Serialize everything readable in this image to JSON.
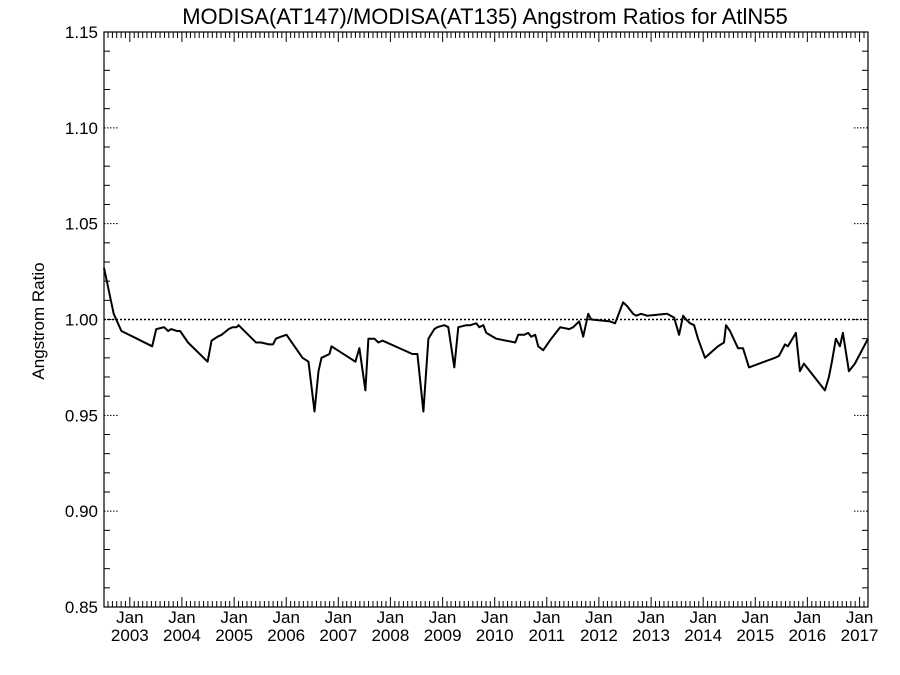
{
  "chart_data": {
    "type": "line",
    "title": "MODISA(AT147)/MODISA(AT135)  Angstrom Ratios for AtlN55",
    "xlabel": "",
    "ylabel": "Angstrom Ratio",
    "ylim": [
      0.85,
      1.15
    ],
    "xlim": [
      "2002-07-04",
      "2017-03-01"
    ],
    "y_ticks": [
      "0.85",
      "0.90",
      "0.95",
      "1.00",
      "1.05",
      "1.10",
      "1.15"
    ],
    "x_ticks": [
      {
        "month": "Jan",
        "year": "2003",
        "date": "2003-01-01"
      },
      {
        "month": "Jan",
        "year": "2004",
        "date": "2004-01-01"
      },
      {
        "month": "Jan",
        "year": "2005",
        "date": "2005-01-01"
      },
      {
        "month": "Jan",
        "year": "2006",
        "date": "2006-01-01"
      },
      {
        "month": "Jan",
        "year": "2007",
        "date": "2007-01-01"
      },
      {
        "month": "Jan",
        "year": "2008",
        "date": "2008-01-01"
      },
      {
        "month": "Jan",
        "year": "2009",
        "date": "2009-01-01"
      },
      {
        "month": "Jan",
        "year": "2010",
        "date": "2010-01-01"
      },
      {
        "month": "Jan",
        "year": "2011",
        "date": "2011-01-01"
      },
      {
        "month": "Jan",
        "year": "2012",
        "date": "2012-01-01"
      },
      {
        "month": "Jan",
        "year": "2013",
        "date": "2013-01-01"
      },
      {
        "month": "Jan",
        "year": "2014",
        "date": "2014-01-01"
      },
      {
        "month": "Jan",
        "year": "2015",
        "date": "2015-01-01"
      },
      {
        "month": "Jan",
        "year": "2016",
        "date": "2016-01-01"
      },
      {
        "month": "Jan",
        "year": "2017",
        "date": "2017-01-01"
      }
    ],
    "reference_line": {
      "y": 1.0,
      "style": "dotted"
    },
    "grid": false,
    "series": [
      {
        "x": [
          "2002-07-04",
          "2002-09-10",
          "2002-11-03",
          "2003-06-07",
          "2003-07-05",
          "2003-08-29",
          "2003-09-26",
          "2003-10-17",
          "2003-11-28",
          "2003-12-19",
          "2004-02-13",
          "2004-06-29",
          "2004-07-27",
          "2004-09-07",
          "2004-10-05",
          "2004-11-23",
          "2004-12-21",
          "2005-01-18",
          "2005-02-01",
          "2005-06-03",
          "2005-07-08",
          "2005-09-02",
          "2005-09-30",
          "2005-10-21",
          "2005-11-25",
          "2006-01-03",
          "2006-04-25",
          "2006-06-06",
          "2006-07-18",
          "2006-08-15",
          "2006-09-05",
          "2006-10-31",
          "2006-11-14",
          "2007-05-01",
          "2007-05-29",
          "2007-07-10",
          "2007-07-31",
          "2007-09-11",
          "2007-10-09",
          "2007-11-06",
          "2008-06-03",
          "2008-07-08",
          "2008-08-19",
          "2008-09-23",
          "2008-11-04",
          "2008-11-25",
          "2009-01-13",
          "2009-02-10",
          "2009-03-24",
          "2009-04-21",
          "2009-06-16",
          "2009-07-14",
          "2009-08-25",
          "2009-09-15",
          "2009-10-13",
          "2009-11-03",
          "2010-01-12",
          "2010-05-25",
          "2010-06-15",
          "2010-07-27",
          "2010-08-24",
          "2010-09-14",
          "2010-10-12",
          "2010-11-02",
          "2010-12-07",
          "2011-02-01",
          "2011-04-05",
          "2011-06-07",
          "2011-07-05",
          "2011-08-16",
          "2011-09-13",
          "2011-10-18",
          "2011-11-08",
          "2012-03-20",
          "2012-04-24",
          "2012-06-19",
          "2012-07-17",
          "2012-08-28",
          "2012-09-18",
          "2012-10-23",
          "2012-12-04",
          "2013-04-23",
          "2013-06-11",
          "2013-07-16",
          "2013-08-13",
          "2013-09-03",
          "2013-10-01",
          "2013-10-29",
          "2013-11-26",
          "2014-01-14",
          "2014-04-15",
          "2014-05-27",
          "2014-06-10",
          "2014-07-08",
          "2014-09-02",
          "2014-10-07",
          "2014-11-18",
          "2015-05-19",
          "2015-06-16",
          "2015-07-28",
          "2015-08-18",
          "2015-10-13",
          "2015-11-10",
          "2015-12-08",
          "2016-05-03",
          "2016-05-31",
          "2016-06-21",
          "2016-07-19",
          "2016-08-16",
          "2016-09-06",
          "2016-10-18",
          "2016-11-29",
          "2017-03-01"
        ],
        "values": [
          1.027,
          1.003,
          0.994,
          0.986,
          0.995,
          0.996,
          0.994,
          0.995,
          0.994,
          0.994,
          0.988,
          0.978,
          0.989,
          0.991,
          0.992,
          0.995,
          0.996,
          0.996,
          0.997,
          0.988,
          0.988,
          0.987,
          0.987,
          0.99,
          0.991,
          0.992,
          0.98,
          0.978,
          0.952,
          0.973,
          0.98,
          0.982,
          0.986,
          0.978,
          0.985,
          0.963,
          0.99,
          0.99,
          0.988,
          0.989,
          0.982,
          0.982,
          0.952,
          0.99,
          0.995,
          0.996,
          0.997,
          0.996,
          0.975,
          0.996,
          0.997,
          0.997,
          0.998,
          0.996,
          0.997,
          0.993,
          0.99,
          0.988,
          0.992,
          0.992,
          0.993,
          0.991,
          0.992,
          0.986,
          0.984,
          0.99,
          0.996,
          0.995,
          0.996,
          0.999,
          0.991,
          1.003,
          1.0,
          0.999,
          0.998,
          1.009,
          1.007,
          1.003,
          1.002,
          1.003,
          1.002,
          1.003,
          1.001,
          0.992,
          1.002,
          1.0,
          0.998,
          0.997,
          0.99,
          0.98,
          0.986,
          0.988,
          0.997,
          0.994,
          0.985,
          0.985,
          0.975,
          0.98,
          0.981,
          0.987,
          0.986,
          0.993,
          0.973,
          0.977,
          0.963,
          0.97,
          0.978,
          0.99,
          0.986,
          0.993,
          0.973,
          0.977,
          0.99
        ]
      }
    ]
  }
}
